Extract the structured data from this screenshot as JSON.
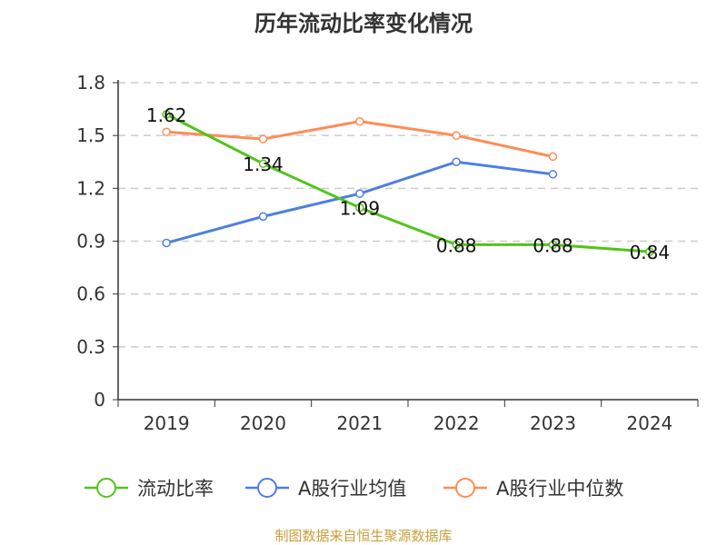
{
  "chart_data": {
    "type": "line",
    "title": "历年流动比率变化情况",
    "categories": [
      "2019",
      "2020",
      "2021",
      "2022",
      "2023",
      "2024"
    ],
    "ylim": [
      0,
      1.8
    ],
    "yticks": [
      "0",
      "0.3",
      "0.6",
      "0.9",
      "1.2",
      "1.5",
      "1.8"
    ],
    "grid": true,
    "legend_position": "bottom",
    "series": [
      {
        "name": "流动比率",
        "color": "#52c41a",
        "values": [
          1.62,
          1.34,
          1.09,
          0.88,
          0.88,
          0.84
        ],
        "labels": [
          "1.62",
          "1.34",
          "1.09",
          "0.88",
          "0.88",
          "0.84"
        ]
      },
      {
        "name": "A股行业均值",
        "color": "#4e7fe0",
        "values": [
          0.89,
          1.04,
          1.17,
          1.35,
          1.28,
          null
        ]
      },
      {
        "name": "A股行业中位数",
        "color": "#ff8c55",
        "values": [
          1.52,
          1.48,
          1.58,
          1.5,
          1.38,
          null
        ]
      }
    ]
  },
  "source": "制图数据来自恒生聚源数据库"
}
